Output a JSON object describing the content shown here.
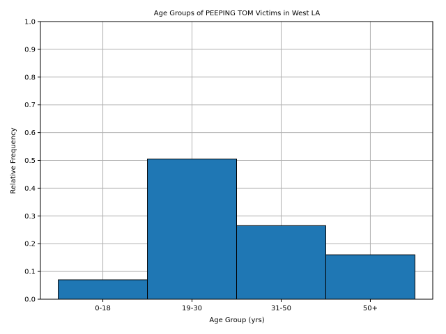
{
  "chart_data": {
    "type": "bar",
    "title": "Age Groups of PEEPING TOM Victims in West LA",
    "xlabel": "Age Group (yrs)",
    "ylabel": "Relative Frequency",
    "categories": [
      "0-18",
      "19-30",
      "31-50",
      "50+"
    ],
    "values": [
      0.07,
      0.505,
      0.265,
      0.16
    ],
    "ylim": [
      0,
      1.0
    ],
    "yticks": [
      "0.0",
      "0.1",
      "0.2",
      "0.3",
      "0.4",
      "0.5",
      "0.6",
      "0.7",
      "0.8",
      "0.9",
      "1.0"
    ],
    "grid": true,
    "bar_color": "#1f77b4",
    "edge_color": "#000000",
    "grid_color": "#b0b0b0"
  }
}
